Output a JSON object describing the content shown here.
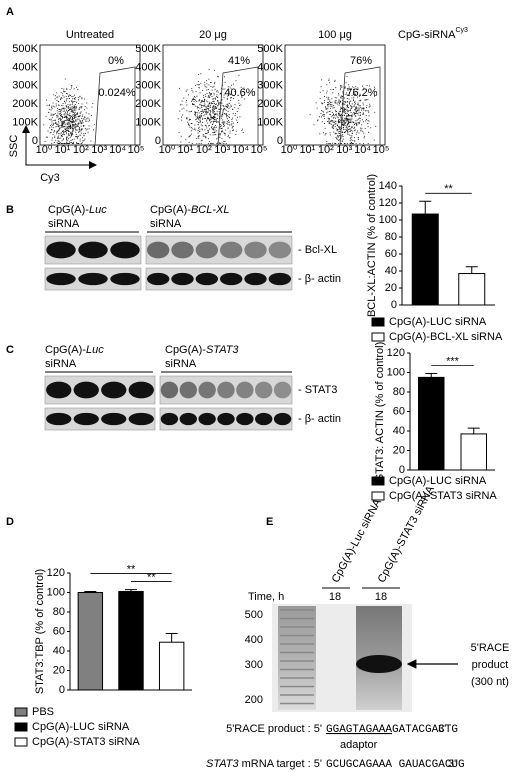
{
  "panel_a": {
    "label": "A",
    "conditions": [
      "Untreated",
      "20 μg",
      "100 μg"
    ],
    "reagent": "CpG-siRNA",
    "reagent_sup": "Cy3",
    "percent_labels": [
      "0%",
      "41%",
      "76%"
    ],
    "gate_labels": [
      "0.024%",
      "40.6%",
      "76.2%"
    ],
    "y_axis": "SSC",
    "x_axis": "Cy3",
    "plot_yticks": [
      "500K",
      "400K",
      "300K",
      "200K",
      "100K",
      "0"
    ],
    "plot_xticks": [
      "10⁰",
      "10¹",
      "10²",
      "10³",
      "10⁴",
      "10⁵"
    ]
  },
  "panel_b": {
    "label": "B",
    "groups": [
      {
        "prefix": "CpG(A)-",
        "name": "Luc",
        "suffix": "siRNA"
      },
      {
        "prefix": "CpG(A)-",
        "name": "BCL-XL",
        "suffix": "siRNA"
      }
    ],
    "bands": [
      "- Bcl-XL",
      "- β- actin"
    ]
  },
  "panel_c": {
    "label": "C",
    "groups": [
      {
        "prefix": "CpG(A)-",
        "name": "Luc",
        "suffix": "siRNA"
      },
      {
        "prefix": "CpG(A)-",
        "name": "STAT3",
        "suffix": "siRNA"
      }
    ],
    "bands": [
      "- STAT3",
      "- β- actin"
    ]
  },
  "panel_d": {
    "label": "D"
  },
  "panel_e": {
    "label": "E",
    "lanes": [
      "CpG(A)-Luc siRNA",
      "CpG(A)-STAT3 siRNA"
    ],
    "time_label": "Time, h",
    "times": [
      "18",
      "18"
    ],
    "ladder": [
      "500",
      "400",
      "300",
      "200"
    ],
    "product_label": [
      "5'RACE",
      "product",
      "(300 nt)"
    ],
    "seq1_label": "5'RACE product : 5'",
    "seq1_adaptor": "GGAGTAGAAA",
    "seq1_rest": "GATACGACTG",
    "seq1_end": "3'",
    "adaptor_label": "adaptor",
    "seq2_gene": "STAT3",
    "seq2_label": "mRNA target : 5'",
    "seq2": "GCUGCAGAAA GAUACGACUG",
    "seq2_end": "3'"
  },
  "chart_data": [
    {
      "type": "bar",
      "ylabel": "BCL-XL:ACTIN (% of control)",
      "ylim": [
        0,
        140
      ],
      "yticks": [
        0,
        20,
        40,
        60,
        80,
        100,
        120,
        140
      ],
      "series": [
        {
          "name": "CpG(A)-LUC siRNA",
          "color": "#000000",
          "values": [
            107
          ],
          "errors": [
            15
          ]
        },
        {
          "name": "CpG(A)-BCL-XL siRNA",
          "color": "#ffffff",
          "values": [
            37
          ],
          "errors": [
            8
          ]
        }
      ],
      "annotations": [
        "**"
      ]
    },
    {
      "type": "bar",
      "ylabel": "STAT3: ACTIN (% of control)",
      "ylim": [
        0,
        120
      ],
      "yticks": [
        0,
        20,
        40,
        60,
        80,
        100,
        120
      ],
      "series": [
        {
          "name": "CpG(A)-LUC siRNA",
          "color": "#000000",
          "values": [
            95
          ],
          "errors": [
            4
          ]
        },
        {
          "name": "CpG(A)-STAT3 siRNA",
          "color": "#ffffff",
          "values": [
            37
          ],
          "errors": [
            6
          ]
        }
      ],
      "annotations": [
        "***"
      ]
    },
    {
      "type": "bar",
      "ylabel": "STAT3:TBP (% of control)",
      "ylim": [
        0,
        120
      ],
      "yticks": [
        0,
        20,
        40,
        60,
        80,
        100,
        120
      ],
      "series": [
        {
          "name": "PBS",
          "color": "#808080",
          "values": [
            100
          ],
          "errors": [
            1
          ]
        },
        {
          "name": "CpG(A)-LUC siRNA",
          "color": "#000000",
          "values": [
            101
          ],
          "errors": [
            2
          ]
        },
        {
          "name": "CpG(A)-STAT3 siRNA",
          "color": "#ffffff",
          "values": [
            49
          ],
          "errors": [
            9
          ]
        }
      ],
      "annotations": [
        "**",
        "**"
      ]
    }
  ]
}
